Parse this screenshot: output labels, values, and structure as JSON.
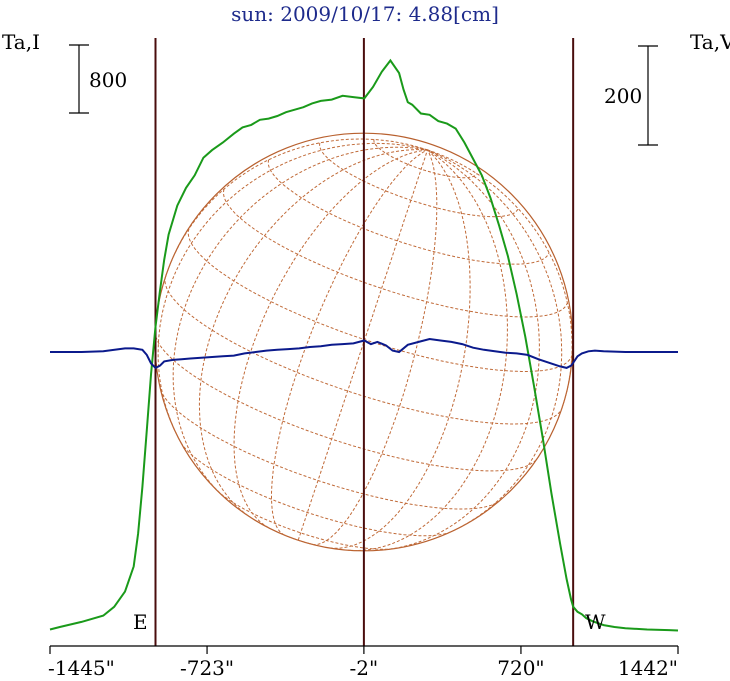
{
  "chart_data": {
    "type": "line",
    "title": "sun: 2009/10/17: 4.88[cm]",
    "left_axis_label": "Ta,I",
    "right_axis_label": "Ta,V",
    "left_scale_bar": "800",
    "right_scale_bar": "200",
    "east_label": "E",
    "west_label": "W",
    "x_ticks": [
      {
        "value": -1445,
        "label": "-1445\""
      },
      {
        "value": -723,
        "label": "-723\""
      },
      {
        "value": -2,
        "label": "-2\""
      },
      {
        "value": 720,
        "label": "720\""
      },
      {
        "value": 1442,
        "label": "1442\""
      }
    ],
    "xlim": [
      -1445,
      1442
    ],
    "limb_markers_arcsec": [
      -960,
      -2,
      960
    ],
    "solar_radius_arcsec": 960,
    "ylim_intensity": [
      0,
      4550
    ],
    "ylim_polarization": [
      -1020,
      1020
    ],
    "series": [
      {
        "name": "I",
        "color": "#1a9a1a",
        "axis": "left",
        "x": [
          -1445,
          -1400,
          -1300,
          -1200,
          -1150,
          -1100,
          -1060,
          -1040,
          -1020,
          -1000,
          -980,
          -960,
          -940,
          -920,
          -900,
          -860,
          -820,
          -780,
          -740,
          -700,
          -650,
          -600,
          -560,
          -520,
          -480,
          -440,
          -400,
          -360,
          -320,
          -280,
          -240,
          -200,
          -150,
          -100,
          -50,
          0,
          40,
          80,
          120,
          160,
          180,
          200,
          220,
          260,
          300,
          340,
          380,
          420,
          460,
          500,
          540,
          580,
          620,
          660,
          700,
          740,
          780,
          820,
          860,
          900,
          930,
          950,
          960,
          980,
          1000,
          1020,
          1050,
          1100,
          1150,
          1200,
          1300,
          1400,
          1442
        ],
        "values": [
          20,
          40,
          80,
          130,
          200,
          320,
          520,
          780,
          1150,
          1600,
          2050,
          2420,
          2700,
          2950,
          3150,
          3380,
          3520,
          3620,
          3760,
          3820,
          3880,
          3950,
          4000,
          4020,
          4060,
          4070,
          4090,
          4120,
          4140,
          4160,
          4190,
          4210,
          4220,
          4250,
          4240,
          4230,
          4320,
          4440,
          4530,
          4430,
          4300,
          4200,
          4180,
          4110,
          4100,
          4050,
          4030,
          3990,
          3880,
          3750,
          3620,
          3440,
          3220,
          2980,
          2680,
          2340,
          1950,
          1540,
          1100,
          700,
          420,
          260,
          200,
          160,
          140,
          110,
          85,
          55,
          40,
          30,
          20,
          15,
          12
        ]
      },
      {
        "name": "V",
        "color": "#0b1a8c",
        "axis": "right",
        "x": [
          -1445,
          -1300,
          -1200,
          -1100,
          -1060,
          -1020,
          -1000,
          -980,
          -960,
          -940,
          -920,
          -880,
          -840,
          -800,
          -750,
          -700,
          -650,
          -600,
          -550,
          -500,
          -450,
          -400,
          -350,
          -300,
          -250,
          -200,
          -150,
          -100,
          -50,
          0,
          30,
          60,
          100,
          130,
          160,
          200,
          250,
          300,
          350,
          400,
          450,
          500,
          550,
          600,
          650,
          700,
          750,
          800,
          850,
          900,
          930,
          950,
          960,
          980,
          1000,
          1030,
          1060,
          1100,
          1200,
          1300,
          1442
        ],
        "values": [
          0,
          0,
          5,
          25,
          25,
          15,
          -20,
          -80,
          -110,
          -95,
          -65,
          -55,
          -50,
          -45,
          -40,
          -35,
          -30,
          -25,
          -10,
          0,
          10,
          15,
          20,
          25,
          35,
          40,
          50,
          55,
          60,
          80,
          55,
          70,
          45,
          10,
          0,
          50,
          70,
          90,
          80,
          70,
          55,
          30,
          15,
          5,
          -5,
          -10,
          -20,
          -50,
          -75,
          -100,
          -110,
          -95,
          -75,
          -30,
          -10,
          5,
          10,
          5,
          0,
          0,
          0
        ]
      }
    ]
  }
}
